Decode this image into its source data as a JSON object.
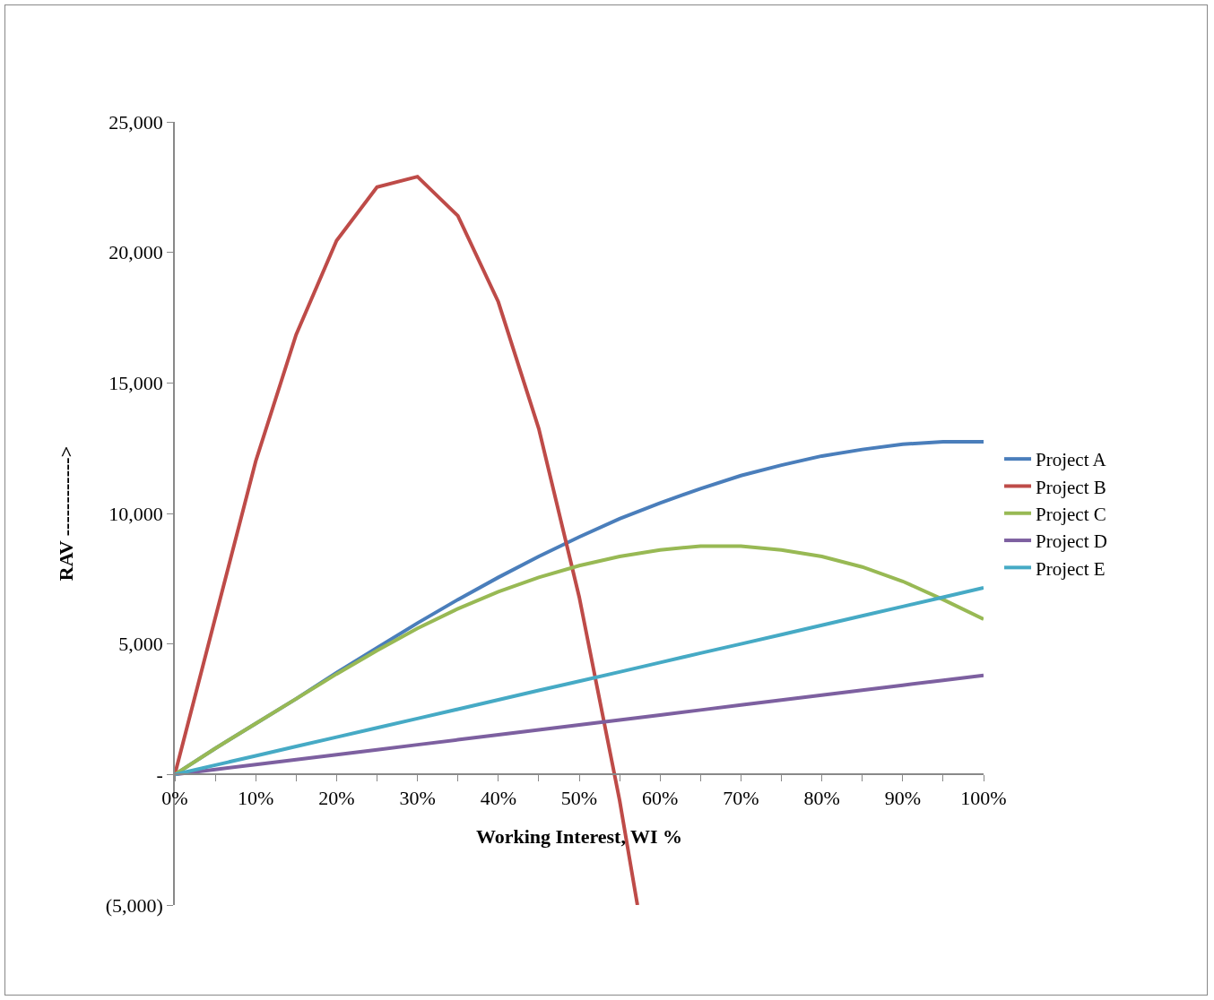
{
  "chart_data": {
    "type": "line",
    "xlabel": "Working Interest, WI %",
    "ylabel": "RAV ------------>",
    "x": [
      0,
      5,
      10,
      15,
      20,
      25,
      30,
      35,
      40,
      45,
      50,
      55,
      60,
      65,
      70,
      75,
      80,
      85,
      90,
      95,
      100
    ],
    "series": [
      {
        "name": "Project A",
        "color": "#4a7ebb",
        "values": [
          0,
          1000,
          1950,
          2900,
          3900,
          4850,
          5800,
          6700,
          7550,
          8350,
          9100,
          9800,
          10400,
          10950,
          11450,
          11850,
          12200,
          12450,
          12650,
          12750,
          12750
        ]
      },
      {
        "name": "Project B",
        "color": "#be4b48",
        "x": [
          0,
          5,
          10,
          15,
          20,
          25,
          30,
          35,
          40,
          45,
          50,
          55,
          57.2
        ],
        "values": [
          0,
          6000,
          12000,
          16850,
          20450,
          22500,
          22900,
          21400,
          18100,
          13250,
          6800,
          -1000,
          -5000
        ]
      },
      {
        "name": "Project C",
        "color": "#98b954",
        "values": [
          0,
          1000,
          1950,
          2900,
          3850,
          4750,
          5600,
          6350,
          7000,
          7550,
          8000,
          8350,
          8600,
          8750,
          8750,
          8600,
          8350,
          7950,
          7400,
          6700,
          5950
        ]
      },
      {
        "name": "Project D",
        "color": "#7d60a0",
        "values": [
          0,
          190,
          380,
          570,
          760,
          950,
          1140,
          1330,
          1520,
          1710,
          1900,
          2090,
          2280,
          2470,
          2660,
          2850,
          3040,
          3230,
          3420,
          3610,
          3800
        ]
      },
      {
        "name": "Project E",
        "color": "#46aac5",
        "values": [
          0,
          360,
          715,
          1075,
          1430,
          1790,
          2145,
          2500,
          2860,
          3220,
          3575,
          3930,
          4290,
          4650,
          5000,
          5360,
          5720,
          6080,
          6435,
          6790,
          7150
        ]
      }
    ],
    "xlim": [
      0,
      100
    ],
    "xticks": [
      {
        "value": 0,
        "label": "0%"
      },
      {
        "value": 5,
        "label": null
      },
      {
        "value": 10,
        "label": "10%"
      },
      {
        "value": 15,
        "label": null
      },
      {
        "value": 20,
        "label": "20%"
      },
      {
        "value": 25,
        "label": null
      },
      {
        "value": 30,
        "label": "30%"
      },
      {
        "value": 35,
        "label": null
      },
      {
        "value": 40,
        "label": "40%"
      },
      {
        "value": 45,
        "label": null
      },
      {
        "value": 50,
        "label": "50%"
      },
      {
        "value": 55,
        "label": null
      },
      {
        "value": 60,
        "label": "60%"
      },
      {
        "value": 65,
        "label": null
      },
      {
        "value": 70,
        "label": "70%"
      },
      {
        "value": 75,
        "label": null
      },
      {
        "value": 80,
        "label": "80%"
      },
      {
        "value": 85,
        "label": null
      },
      {
        "value": 90,
        "label": "90%"
      },
      {
        "value": 95,
        "label": null
      },
      {
        "value": 100,
        "label": "100%"
      }
    ],
    "ylim": [
      -5000,
      25000
    ],
    "yticks": [
      {
        "value": -5000,
        "label": "(5,000)"
      },
      {
        "value": 0,
        "label": "-"
      },
      {
        "value": 5000,
        "label": "5,000"
      },
      {
        "value": 10000,
        "label": "10,000"
      },
      {
        "value": 15000,
        "label": "15,000"
      },
      {
        "value": 20000,
        "label": "20,000"
      },
      {
        "value": 25000,
        "label": "25,000"
      }
    ],
    "grid": false,
    "legend": "right",
    "marker": "none",
    "line_style": "solid"
  }
}
